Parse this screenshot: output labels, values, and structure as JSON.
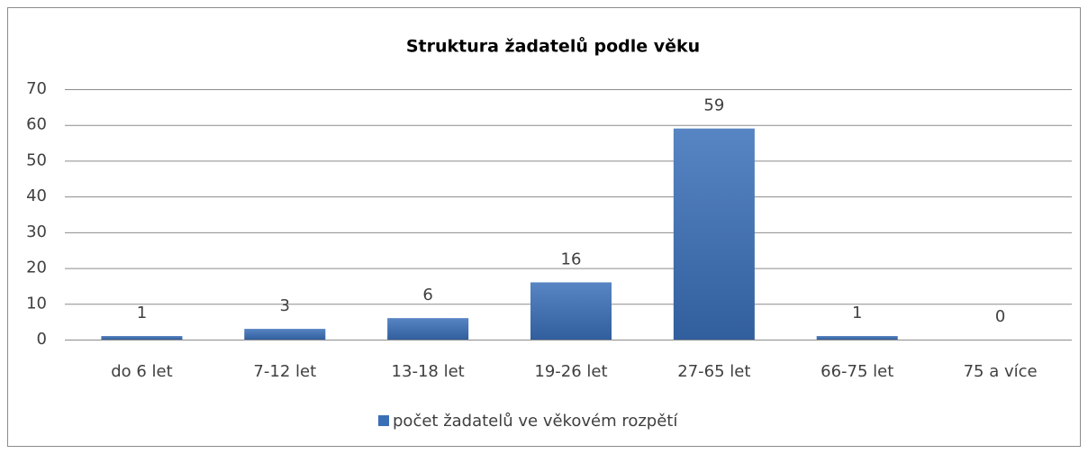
{
  "chart_data": {
    "type": "bar",
    "title": "Struktura žadatelů podle věku",
    "categories": [
      "do 6 let",
      "7-12 let",
      "13-18 let",
      "19-26 let",
      "27-65 let",
      "66-75 let",
      "75 a více"
    ],
    "series": [
      {
        "name": "počet žadatelů ve věkovém rozpětí",
        "color": "#3a6fb8",
        "values": [
          1,
          3,
          6,
          16,
          59,
          1,
          0
        ]
      }
    ],
    "ylim": [
      0,
      70
    ],
    "yticks": [
      0,
      10,
      20,
      30,
      40,
      50,
      60,
      70
    ],
    "grid": true,
    "legend": "bottom",
    "data_labels": true
  }
}
